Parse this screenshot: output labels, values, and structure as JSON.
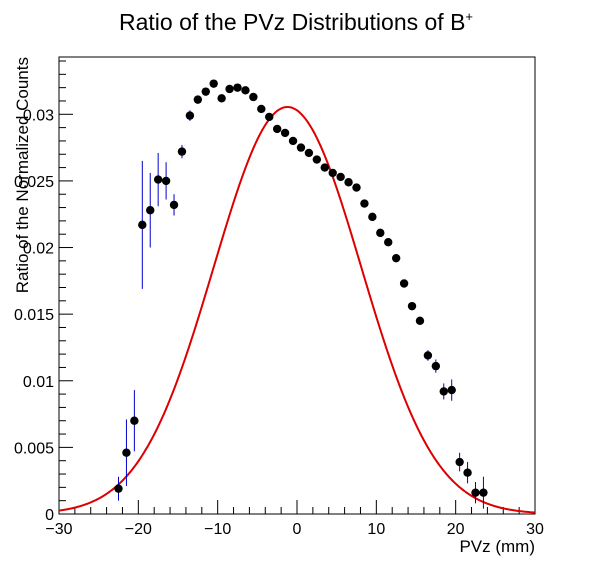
{
  "chart_data": {
    "type": "scatter",
    "title": "Ratio of the PVz Distributions of B",
    "title_superscript": "+",
    "xlabel": "PVz (mm)",
    "ylabel": "Ratio of the Normalized Counts",
    "xlim": [
      -30,
      30
    ],
    "ylim": [
      0,
      0.0343
    ],
    "x_ticks": [
      -30,
      -20,
      -10,
      0,
      10,
      20,
      30
    ],
    "x_tick_labels": [
      "−30",
      "−20",
      "−10",
      "0",
      "10",
      "20",
      "30"
    ],
    "y_ticks": [
      0,
      0.005,
      0.01,
      0.015,
      0.02,
      0.025,
      0.03
    ],
    "y_tick_labels": [
      "0",
      "0.005",
      "0.01",
      "0.015",
      "0.02",
      "0.025",
      "0.03"
    ],
    "grid": false,
    "legend": "none",
    "colors": {
      "points": "#000000",
      "error_bars": "#0000cc",
      "curve": "#dd0000",
      "frame": "#000000"
    },
    "points": [
      {
        "x": -22.5,
        "y": 0.0019,
        "err": 0.0009
      },
      {
        "x": -21.5,
        "y": 0.0046,
        "err": 0.0025
      },
      {
        "x": -20.5,
        "y": 0.007,
        "err": 0.0023
      },
      {
        "x": -19.5,
        "y": 0.0217,
        "err": 0.0048
      },
      {
        "x": -18.5,
        "y": 0.0228,
        "err": 0.0028
      },
      {
        "x": -17.5,
        "y": 0.0251,
        "err": 0.002
      },
      {
        "x": -16.5,
        "y": 0.025,
        "err": 0.0014
      },
      {
        "x": -15.5,
        "y": 0.0232,
        "err": 0.0008
      },
      {
        "x": -14.5,
        "y": 0.0272,
        "err": 0.0005
      },
      {
        "x": -13.5,
        "y": 0.0299,
        "err": 0.0004
      },
      {
        "x": -12.5,
        "y": 0.0311,
        "err": 0.0003
      },
      {
        "x": -11.5,
        "y": 0.0317,
        "err": 0.0003
      },
      {
        "x": -10.5,
        "y": 0.0323,
        "err": 0.0002
      },
      {
        "x": -9.5,
        "y": 0.0312,
        "err": 0.0002
      },
      {
        "x": -8.5,
        "y": 0.0319,
        "err": 0.0002
      },
      {
        "x": -7.5,
        "y": 0.032,
        "err": 0.0002
      },
      {
        "x": -6.5,
        "y": 0.0318,
        "err": 0.0002
      },
      {
        "x": -5.5,
        "y": 0.0313,
        "err": 0.0002
      },
      {
        "x": -4.5,
        "y": 0.0304,
        "err": 0.0002
      },
      {
        "x": -3.5,
        "y": 0.0298,
        "err": 0.0002
      },
      {
        "x": -2.5,
        "y": 0.0289,
        "err": 0.0002
      },
      {
        "x": -1.5,
        "y": 0.0286,
        "err": 0.0002
      },
      {
        "x": -0.5,
        "y": 0.028,
        "err": 0.0002
      },
      {
        "x": 0.5,
        "y": 0.0275,
        "err": 0.0002
      },
      {
        "x": 1.5,
        "y": 0.0271,
        "err": 0.0002
      },
      {
        "x": 2.5,
        "y": 0.0266,
        "err": 0.0002
      },
      {
        "x": 3.5,
        "y": 0.026,
        "err": 0.0002
      },
      {
        "x": 4.5,
        "y": 0.0256,
        "err": 0.0002
      },
      {
        "x": 5.5,
        "y": 0.0253,
        "err": 0.0002
      },
      {
        "x": 6.5,
        "y": 0.0249,
        "err": 0.0002
      },
      {
        "x": 7.5,
        "y": 0.0245,
        "err": 0.0002
      },
      {
        "x": 8.5,
        "y": 0.0233,
        "err": 0.0002
      },
      {
        "x": 9.5,
        "y": 0.0223,
        "err": 0.0003
      },
      {
        "x": 10.5,
        "y": 0.0211,
        "err": 0.0003
      },
      {
        "x": 11.5,
        "y": 0.0204,
        "err": 0.0003
      },
      {
        "x": 12.5,
        "y": 0.0192,
        "err": 0.0003
      },
      {
        "x": 13.5,
        "y": 0.0173,
        "err": 0.0003
      },
      {
        "x": 14.5,
        "y": 0.0156,
        "err": 0.0003
      },
      {
        "x": 15.5,
        "y": 0.0145,
        "err": 0.0003
      },
      {
        "x": 16.5,
        "y": 0.0119,
        "err": 0.0004
      },
      {
        "x": 17.5,
        "y": 0.0111,
        "err": 0.0005
      },
      {
        "x": 18.5,
        "y": 0.0092,
        "err": 0.0006
      },
      {
        "x": 19.5,
        "y": 0.0093,
        "err": 0.0008
      },
      {
        "x": 20.5,
        "y": 0.0039,
        "err": 0.0007
      },
      {
        "x": 21.5,
        "y": 0.0031,
        "err": 0.0008
      },
      {
        "x": 22.5,
        "y": 0.0016,
        "err": 0.0008
      },
      {
        "x": 23.5,
        "y": 0.0016,
        "err": 0.0012
      }
    ],
    "curve": {
      "type": "gaussian",
      "amplitude": 0.03055,
      "mean": -1.2,
      "sigma": 9.3
    }
  }
}
